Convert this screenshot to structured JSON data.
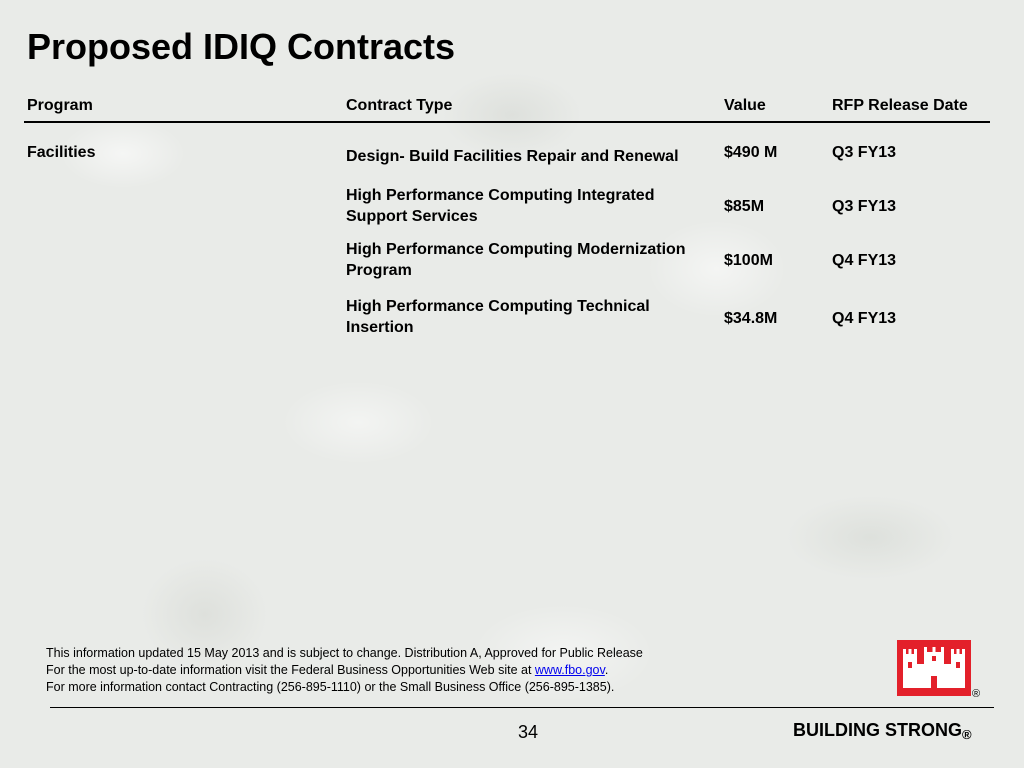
{
  "title": "Proposed IDIQ Contracts",
  "table": {
    "headers": [
      "Program",
      "Contract Type",
      "Value",
      "RFP Release Date"
    ],
    "program": "Facilities",
    "rows": [
      {
        "contract_type": "Design- Build Facilities Repair and Renewal",
        "value": "$490 M",
        "rfp": "Q3 FY13"
      },
      {
        "contract_type": "High Performance Computing Integrated Support Services",
        "value": "$85M",
        "rfp": "Q3 FY13"
      },
      {
        "contract_type": "High Performance Computing Modernization Program",
        "value": "$100M",
        "rfp": "Q4 FY13"
      },
      {
        "contract_type": "High Performance Computing Technical Insertion",
        "value": "$34.8M",
        "rfp": "Q4 FY13"
      }
    ]
  },
  "footer": {
    "line1": "This information updated 15 May 2013 and is subject to change. Distribution A, Approved for Public Release",
    "line2_prefix": "For the most up-to-date information visit the Federal Business Opportunities Web site at ",
    "line2_link": "www.fbo.gov",
    "line2_suffix": ".",
    "line3": "For more information contact Contracting (256-895-1110) or the Small Business Office (256-895-1385)."
  },
  "page_number": "34",
  "brand": "BUILDING STRONG",
  "registered_mark": "®",
  "colors": {
    "logo_red": "#e3202a"
  }
}
